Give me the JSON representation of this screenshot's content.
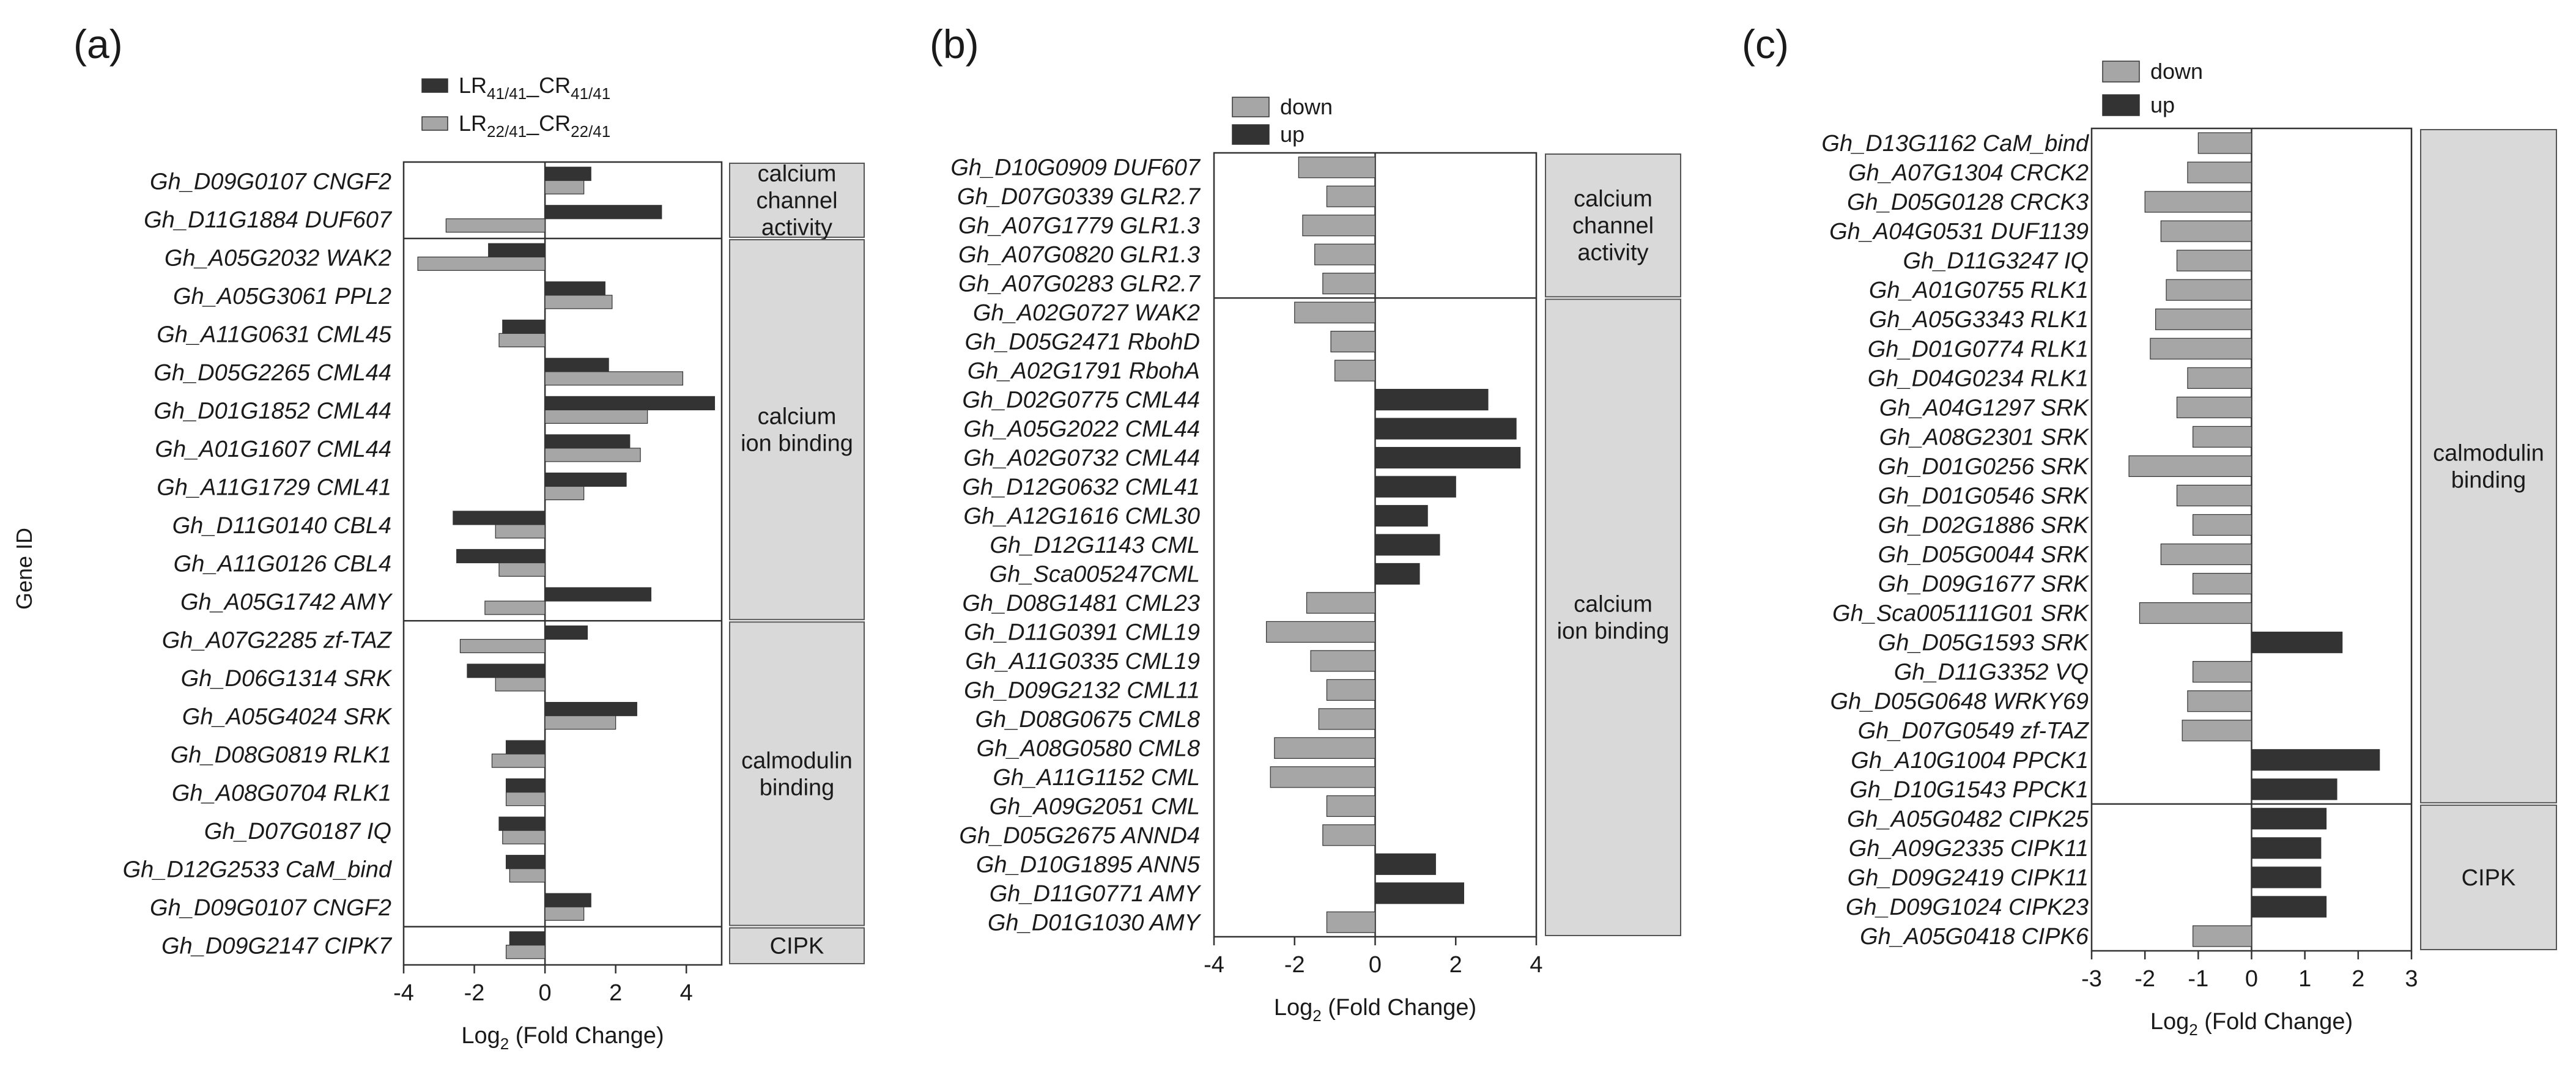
{
  "chart_data": [
    {
      "type": "bar",
      "panel": "(a)",
      "ylabel": "Gene ID",
      "xlabel_base": "Log",
      "xlabel_sub": "2",
      "xlabel_rest": " (Fold Change)",
      "xlim": [
        -4,
        5
      ],
      "xticks": [
        "-4",
        "-2",
        "0",
        "2",
        "4"
      ],
      "legend": [
        {
          "base": "LR",
          "s1": "41/41",
          "mid": "_CR",
          "s2": "41/41",
          "color": "#333333"
        },
        {
          "base": "LR",
          "s1": "22/41",
          "mid": "_CR",
          "s2": "22/41",
          "color": "#a6a6a6"
        }
      ],
      "categories": [
        "Gh_D09G0107 CNGF2",
        "Gh_D11G1884 DUF607",
        "Gh_A05G2032 WAK2",
        "Gh_A05G3061 PPL2",
        "Gh_A11G0631 CML45",
        "Gh_D05G2265 CML44",
        "Gh_D01G1852 CML44",
        "Gh_A01G1607 CML44",
        "Gh_A11G1729 CML41",
        "Gh_D11G0140 CBL4",
        "Gh_A11G0126 CBL4",
        "Gh_A05G1742 AMY",
        "Gh_A07G2285 zf-TAZ",
        "Gh_D06G1314 SRK",
        "Gh_A05G4024 SRK",
        "Gh_D08G0819 RLK1",
        "Gh_A08G0704 RLK1",
        "Gh_D07G0187 IQ",
        "Gh_D12G2533 CaM_bind",
        "Gh_D09G0107 CNGF2",
        "Gh_D09G2147 CIPK7"
      ],
      "series": [
        {
          "name": "LR41/41_CR41/41",
          "color": "#333333",
          "values": [
            1.3,
            3.3,
            -1.6,
            1.7,
            -1.2,
            1.8,
            4.8,
            2.4,
            2.3,
            -2.6,
            -2.5,
            3.0,
            1.2,
            -2.2,
            2.6,
            -1.1,
            -1.1,
            -1.3,
            -1.1,
            1.3,
            -1.0
          ]
        },
        {
          "name": "LR22/41_CR22/41",
          "color": "#a6a6a6",
          "values": [
            1.1,
            -2.8,
            -3.6,
            1.9,
            -1.3,
            3.9,
            2.9,
            2.7,
            1.1,
            -1.4,
            -1.3,
            -1.7,
            -2.4,
            -1.4,
            2.0,
            -1.5,
            -1.1,
            -1.2,
            -1.0,
            1.1,
            -1.1
          ]
        }
      ],
      "groups": [
        {
          "label": [
            "calcium",
            "channel",
            "activity"
          ],
          "start": 0,
          "end": 1
        },
        {
          "label": [
            "calcium",
            "ion binding"
          ],
          "start": 2,
          "end": 11
        },
        {
          "label": [
            "calmodulin",
            "binding"
          ],
          "start": 12,
          "end": 19
        },
        {
          "label": [
            "CIPK"
          ],
          "start": 20,
          "end": 20
        }
      ]
    },
    {
      "type": "bar",
      "panel": "(b)",
      "xlabel_base": "Log",
      "xlabel_sub": "2",
      "xlabel_rest": " (Fold Change)",
      "xlim": [
        -4,
        4
      ],
      "xticks": [
        "-4",
        "-2",
        "0",
        "2",
        "4"
      ],
      "legend": [
        {
          "base": "down",
          "color": "#a6a6a6"
        },
        {
          "base": "up",
          "color": "#333333"
        }
      ],
      "categories": [
        "Gh_D10G0909 DUF607",
        "Gh_D07G0339 GLR2.7",
        "Gh_A07G1779 GLR1.3",
        "Gh_A07G0820 GLR1.3",
        "Gh_A07G0283 GLR2.7",
        "Gh_A02G0727 WAK2",
        "Gh_D05G2471 RbohD",
        "Gh_A02G1791 RbohA",
        "Gh_D02G0775 CML44",
        "Gh_A05G2022 CML44",
        "Gh_A02G0732 CML44",
        "Gh_D12G0632 CML41",
        "Gh_A12G1616 CML30",
        "Gh_D12G1143 CML",
        "Gh_Sca005247CML",
        "Gh_D08G1481 CML23",
        "Gh_D11G0391 CML19",
        "Gh_A11G0335 CML19",
        "Gh_D09G2132 CML11",
        "Gh_D08G0675 CML8",
        "Gh_A08G0580 CML8",
        "Gh_A11G1152 CML",
        "Gh_A09G2051 CML",
        "Gh_D05G2675 ANND4",
        "Gh_D10G1895 ANN5",
        "Gh_D11G0771 AMY",
        "Gh_D01G1030 AMY"
      ],
      "values": [
        -1.9,
        -1.2,
        -1.8,
        -1.5,
        -1.3,
        -2.0,
        -1.1,
        -1.0,
        2.8,
        3.5,
        3.6,
        2.0,
        1.3,
        1.6,
        1.1,
        -1.7,
        -2.7,
        -1.6,
        -1.2,
        -1.4,
        -2.5,
        -2.6,
        -1.2,
        -1.3,
        1.5,
        2.2,
        -1.2
      ],
      "groups": [
        {
          "label": [
            "calcium",
            "channel",
            "activity"
          ],
          "start": 0,
          "end": 4
        },
        {
          "label": [
            "calcium",
            "ion binding"
          ],
          "start": 5,
          "end": 26
        }
      ]
    },
    {
      "type": "bar",
      "panel": "(c)",
      "xlabel_base": "Log",
      "xlabel_sub": "2",
      "xlabel_rest": " (Fold Change)",
      "xlim": [
        -3,
        3
      ],
      "xticks": [
        "-3",
        "-2",
        "-1",
        "0",
        "1",
        "2",
        "3"
      ],
      "legend": [
        {
          "base": "down",
          "color": "#a6a6a6"
        },
        {
          "base": "up",
          "color": "#333333"
        }
      ],
      "categories": [
        "Gh_D13G1162 CaM_bind",
        "Gh_A07G1304 CRCK2",
        "Gh_D05G0128 CRCK3",
        "Gh_A04G0531 DUF1139",
        "Gh_D11G3247 IQ",
        "Gh_A01G0755 RLK1",
        "Gh_A05G3343 RLK1",
        "Gh_D01G0774 RLK1",
        "Gh_D04G0234 RLK1",
        "Gh_A04G1297 SRK",
        "Gh_A08G2301 SRK",
        "Gh_D01G0256 SRK",
        "Gh_D01G0546 SRK",
        "Gh_D02G1886 SRK",
        "Gh_D05G0044 SRK",
        "Gh_D09G1677 SRK",
        "Gh_Sca005111G01 SRK",
        "Gh_D05G1593 SRK",
        "Gh_D11G3352 VQ",
        "Gh_D05G0648 WRKY69",
        "Gh_D07G0549 zf-TAZ",
        "Gh_A10G1004 PPCK1",
        "Gh_D10G1543 PPCK1",
        "Gh_A05G0482 CIPK25",
        "Gh_A09G2335 CIPK11",
        "Gh_D09G2419 CIPK11",
        "Gh_D09G1024 CIPK23",
        "Gh_A05G0418 CIPK6"
      ],
      "values": [
        -1.0,
        -1.2,
        -2.0,
        -1.7,
        -1.4,
        -1.6,
        -1.8,
        -1.9,
        -1.2,
        -1.4,
        -1.1,
        -2.3,
        -1.4,
        -1.1,
        -1.7,
        -1.1,
        -2.1,
        1.7,
        -1.1,
        -1.2,
        -1.3,
        2.4,
        1.6,
        1.4,
        1.3,
        1.3,
        1.4,
        -1.1
      ],
      "groups": [
        {
          "label": [
            "calmodulin",
            "binding"
          ],
          "start": 0,
          "end": 22
        },
        {
          "label": [
            "CIPK"
          ],
          "start": 23,
          "end": 27
        }
      ]
    }
  ]
}
